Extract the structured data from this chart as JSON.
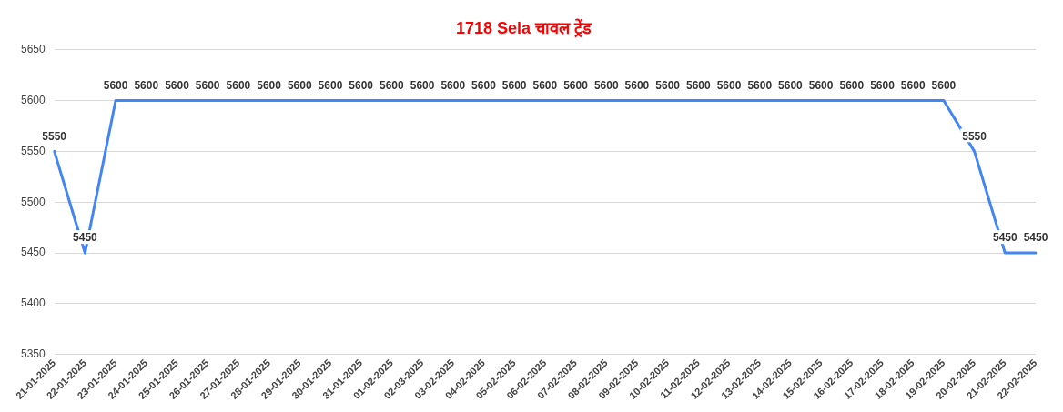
{
  "chart_data": {
    "type": "line",
    "title": "1718 Sela चावल ट्रेंड",
    "categories": [
      "21-01-2025",
      "22-01-2025",
      "23-01-2025",
      "24-01-2025",
      "25-01-2025",
      "26-01-2025",
      "27-01-2025",
      "28-01-2025",
      "29-01-2025",
      "30-01-2025",
      "31-01-2025",
      "01-02-2025",
      "02-03-2025",
      "03-02-2025",
      "04-02-2025",
      "05-02-2025",
      "06-02-2025",
      "07-02-2025",
      "08-02-2025",
      "09-02-2025",
      "10-02-2025",
      "11-02-2025",
      "12-02-2025",
      "13-02-2025",
      "14-02-2025",
      "15-02-2025",
      "16-02-2025",
      "17-02-2025",
      "18-02-2025",
      "19-02-2025",
      "20-02-2025",
      "21-02-2025",
      "22-02-2025"
    ],
    "series": [
      {
        "color": "#4285f4",
        "values": [
          5550,
          5450,
          5600,
          5600,
          5600,
          5600,
          5600,
          5600,
          5600,
          5600,
          5600,
          5600,
          5600,
          5600,
          5600,
          5600,
          5600,
          5600,
          5600,
          5600,
          5600,
          5600,
          5600,
          5600,
          5600,
          5600,
          5600,
          5600,
          5600,
          5600,
          5550,
          5450,
          5450
        ]
      }
    ],
    "ylim": [
      5350,
      5650
    ],
    "yticks": [
      5350,
      5400,
      5450,
      5500,
      5550,
      5600,
      5650
    ],
    "grid": "y",
    "legend": false,
    "marker": "none",
    "line_style": "solid",
    "data_labels": true
  }
}
